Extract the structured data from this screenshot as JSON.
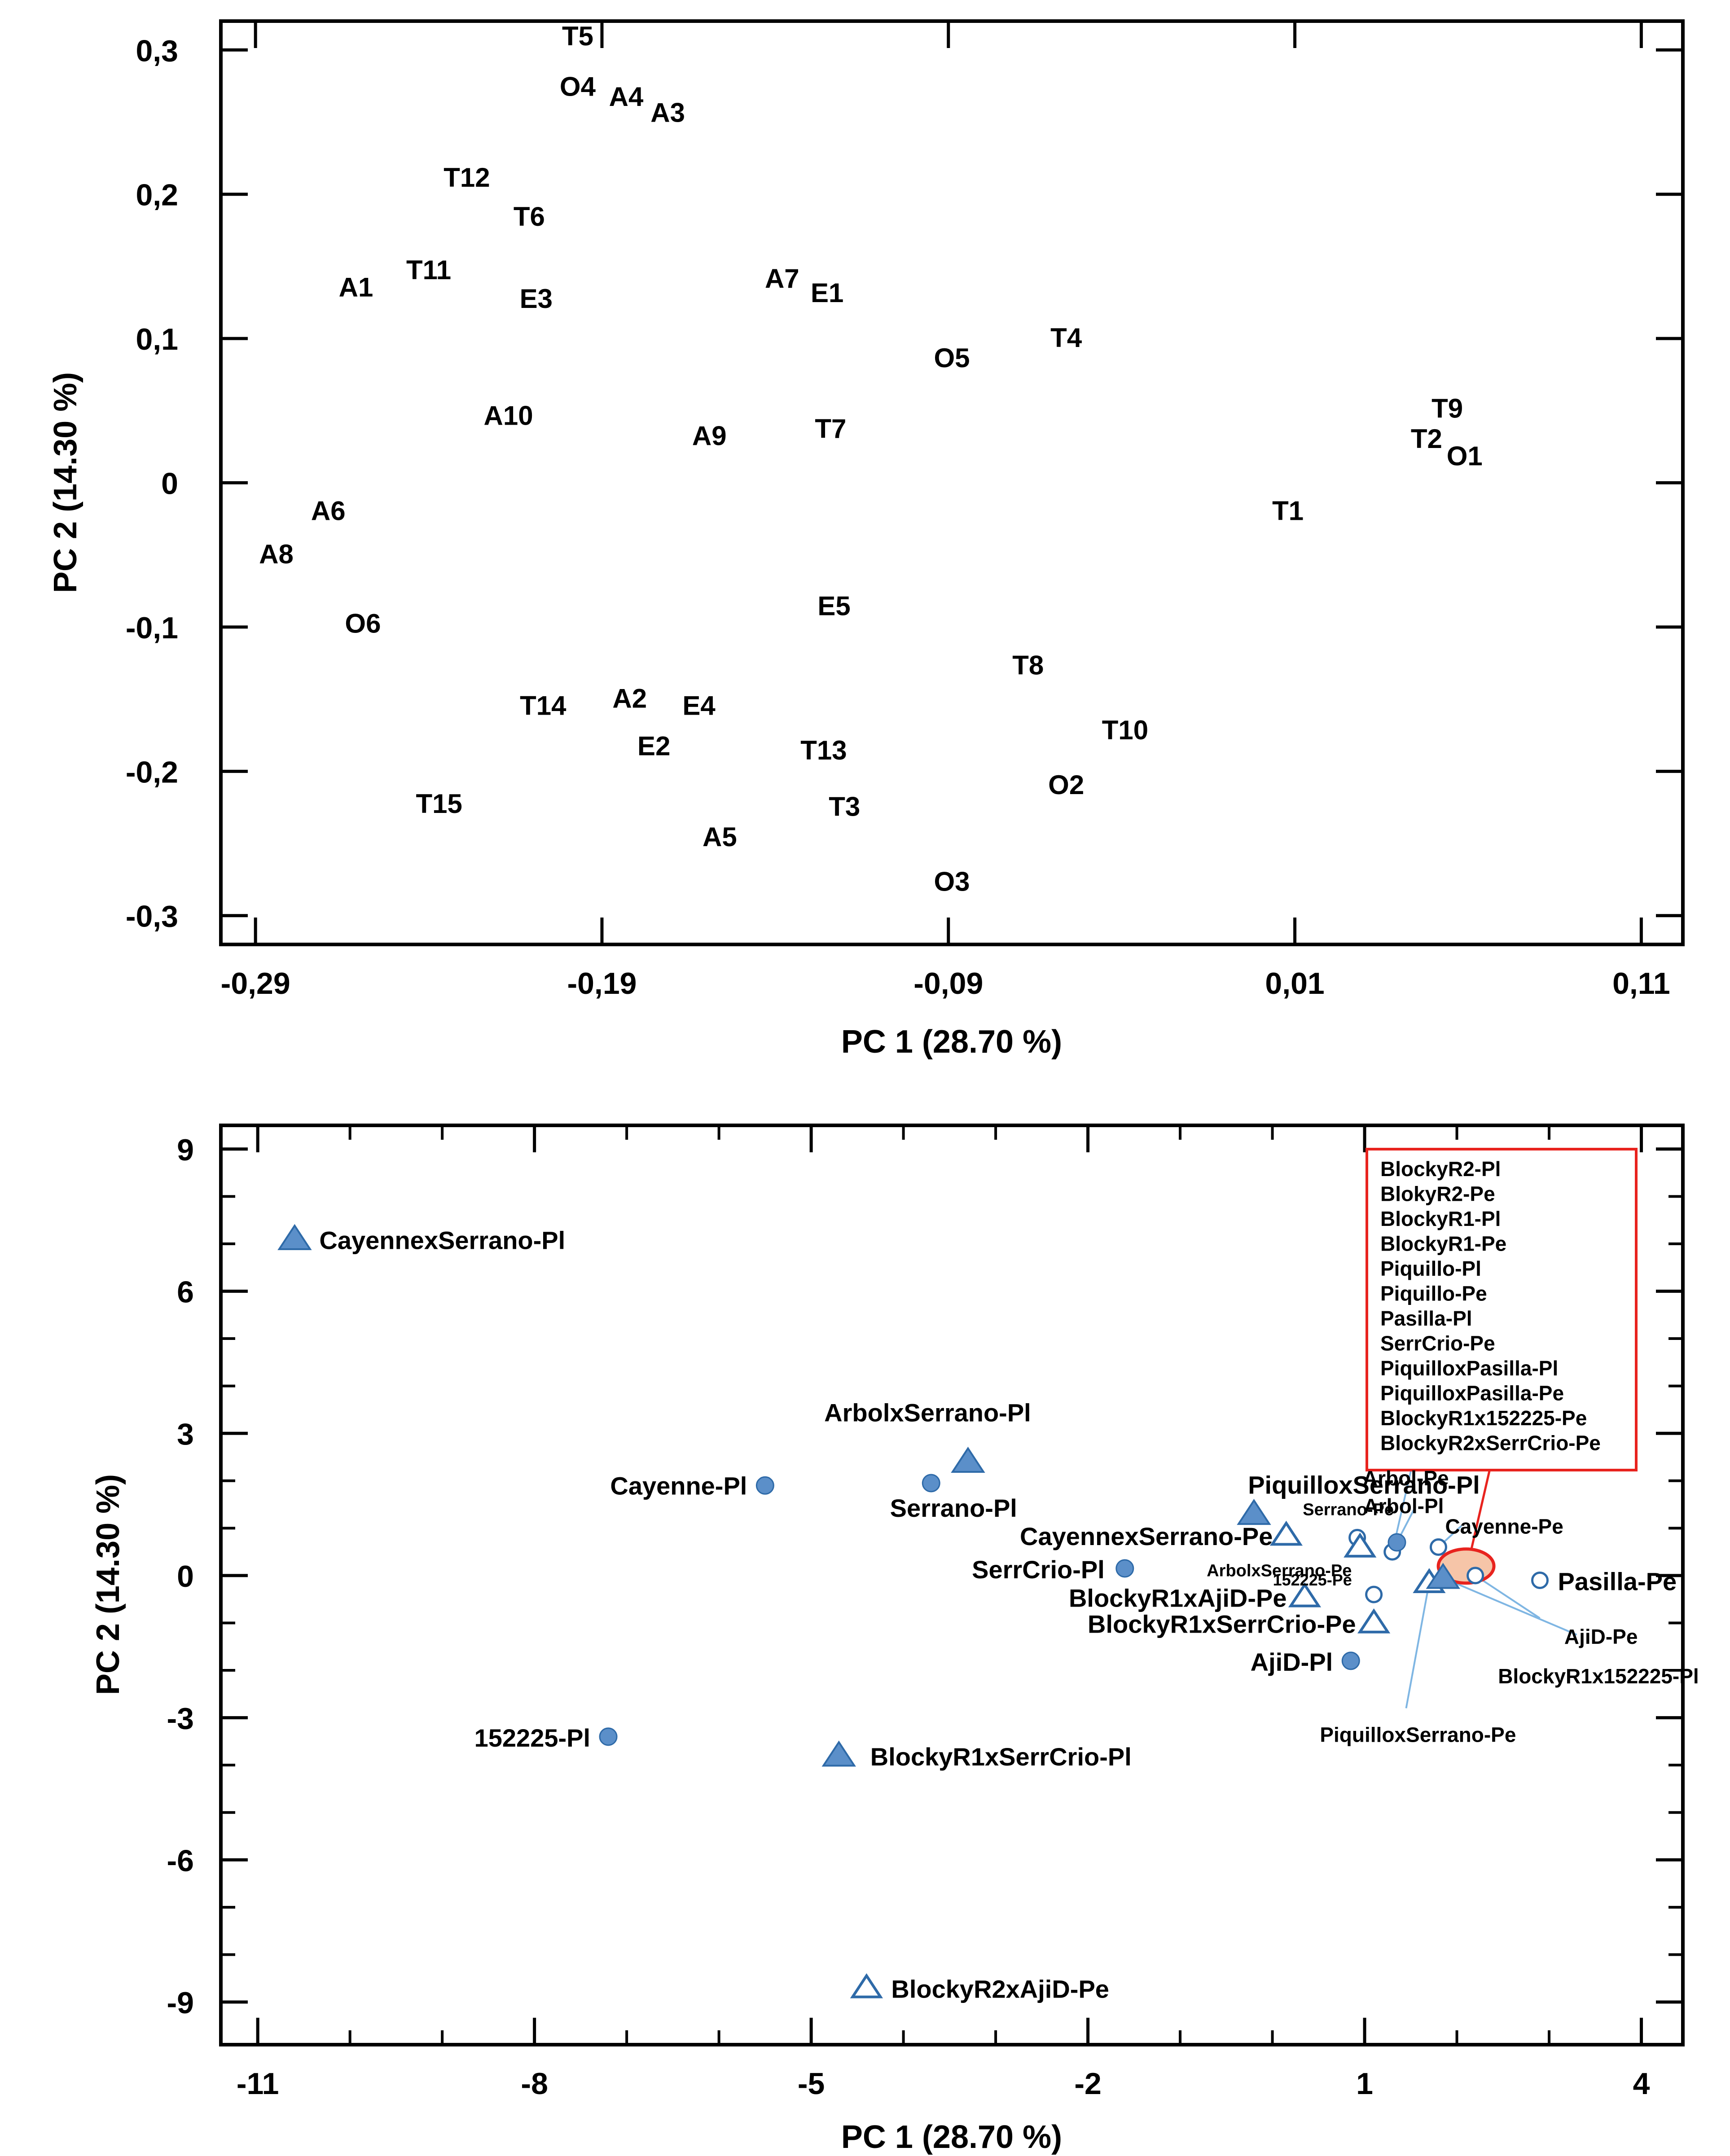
{
  "chart_data": [
    {
      "type": "scatter",
      "title": "",
      "xlabel": "PC 1 (28.70 %)",
      "ylabel": "PC 2 (14.30 %)",
      "xlim": [
        -0.3,
        0.122
      ],
      "ylim": [
        -0.32,
        0.32
      ],
      "x_ticks": [
        -0.29,
        -0.19,
        -0.09,
        0.01,
        0.11
      ],
      "x_tick_labels": [
        "-0,29",
        "-0,19",
        "-0,09",
        "0,01",
        "0,11"
      ],
      "y_ticks": [
        -0.3,
        -0.2,
        -0.1,
        0,
        0.1,
        0.2,
        0.3
      ],
      "y_tick_labels": [
        "-0,3",
        "-0,2",
        "-0,1",
        "0",
        "0,1",
        "0,2",
        "0,3"
      ],
      "grid": false,
      "points": [
        {
          "label": "T5",
          "x": -0.197,
          "y": 0.31
        },
        {
          "label": "O4",
          "x": -0.197,
          "y": 0.275
        },
        {
          "label": "A4",
          "x": -0.183,
          "y": 0.268
        },
        {
          "label": "A3",
          "x": -0.171,
          "y": 0.257
        },
        {
          "label": "T12",
          "x": -0.229,
          "y": 0.212
        },
        {
          "label": "T6",
          "x": -0.211,
          "y": 0.185
        },
        {
          "label": "A1",
          "x": -0.261,
          "y": 0.136
        },
        {
          "label": "T11",
          "x": -0.24,
          "y": 0.148
        },
        {
          "label": "E3",
          "x": -0.209,
          "y": 0.128
        },
        {
          "label": "A7",
          "x": -0.138,
          "y": 0.142
        },
        {
          "label": "E1",
          "x": -0.125,
          "y": 0.132
        },
        {
          "label": "T4",
          "x": -0.056,
          "y": 0.101
        },
        {
          "label": "O5",
          "x": -0.089,
          "y": 0.087
        },
        {
          "label": "T9",
          "x": 0.054,
          "y": 0.052
        },
        {
          "label": "A10",
          "x": -0.217,
          "y": 0.047
        },
        {
          "label": "A9",
          "x": -0.159,
          "y": 0.033
        },
        {
          "label": "T7",
          "x": -0.124,
          "y": 0.038
        },
        {
          "label": "T2",
          "x": 0.048,
          "y": 0.031
        },
        {
          "label": "O1",
          "x": 0.059,
          "y": 0.019
        },
        {
          "label": "A6",
          "x": -0.269,
          "y": -0.019
        },
        {
          "label": "T1",
          "x": 0.008,
          "y": -0.019
        },
        {
          "label": "A8",
          "x": -0.284,
          "y": -0.049
        },
        {
          "label": "E5",
          "x": -0.123,
          "y": -0.085
        },
        {
          "label": "O6",
          "x": -0.259,
          "y": -0.097
        },
        {
          "label": "T8",
          "x": -0.067,
          "y": -0.126
        },
        {
          "label": "A2",
          "x": -0.182,
          "y": -0.149
        },
        {
          "label": "T14",
          "x": -0.207,
          "y": -0.154
        },
        {
          "label": "E4",
          "x": -0.162,
          "y": -0.154
        },
        {
          "label": "T10",
          "x": -0.039,
          "y": -0.171
        },
        {
          "label": "E2",
          "x": -0.175,
          "y": -0.182
        },
        {
          "label": "T13",
          "x": -0.126,
          "y": -0.185
        },
        {
          "label": "O2",
          "x": -0.056,
          "y": -0.209
        },
        {
          "label": "T15",
          "x": -0.237,
          "y": -0.222
        },
        {
          "label": "T3",
          "x": -0.12,
          "y": -0.224
        },
        {
          "label": "A5",
          "x": -0.156,
          "y": -0.245
        },
        {
          "label": "O3",
          "x": -0.089,
          "y": -0.276
        }
      ]
    },
    {
      "type": "scatter",
      "title": "",
      "xlabel": "PC 1 (28.70 %)",
      "ylabel": "PC 2 (14.30 %)",
      "xlim": [
        -11.4,
        4.45
      ],
      "ylim": [
        -9.9,
        9.5
      ],
      "x_ticks": [
        -11,
        -8,
        -5,
        -2,
        1,
        4
      ],
      "x_tick_labels": [
        "-11",
        "-8",
        "-5",
        "-2",
        "1",
        "4"
      ],
      "y_ticks": [
        -9,
        -6,
        -3,
        0,
        3,
        6,
        9
      ],
      "y_tick_labels": [
        "-9",
        "-6",
        "-3",
        "0",
        "3",
        "6",
        "9"
      ],
      "grid": false,
      "colors": {
        "marker_fill": "#5b8fc9",
        "marker_edge": "#2e6aa8",
        "callout": "#e8231e",
        "callout_fill": "#f6c5a8",
        "leader": "#7fb6e3"
      },
      "points": [
        {
          "label": "CayennexSerrano-Pl",
          "x": -10.6,
          "y": 7.1,
          "marker": "triangle-filled"
        },
        {
          "label": "ArbolxSerrano-Pl",
          "x": -3.3,
          "y": 2.4,
          "marker": "triangle-filled"
        },
        {
          "label": "Cayenne-Pl",
          "x": -5.5,
          "y": 1.9,
          "marker": "circle-filled"
        },
        {
          "label": "Serrano-Pl",
          "x": -3.7,
          "y": 1.95,
          "marker": "circle-filled"
        },
        {
          "label": "PiquilloxSerrano-Pl",
          "x": -0.2,
          "y": 1.3,
          "marker": "triangle-filled"
        },
        {
          "label": "CayennexSerrano-Pe",
          "x": 0.15,
          "y": 0.85,
          "marker": "triangle-open"
        },
        {
          "label": "SerrCrio-Pl",
          "x": -1.6,
          "y": 0.15,
          "marker": "circle-filled"
        },
        {
          "label": "BlockyR1xAjiD-Pe",
          "x": 0.35,
          "y": -0.45,
          "marker": "triangle-open"
        },
        {
          "label": "BlockyR1xSerrCrio-Pe",
          "x": 1.1,
          "y": -1.0,
          "marker": "triangle-open"
        },
        {
          "label": "AjiD-Pl",
          "x": 0.85,
          "y": -1.8,
          "marker": "circle-filled"
        },
        {
          "label": "152225-Pl",
          "x": -7.2,
          "y": -3.4,
          "marker": "circle-filled"
        },
        {
          "label": "BlockyR1xSerrCrio-Pl",
          "x": -4.7,
          "y": -3.8,
          "marker": "triangle-filled"
        },
        {
          "label": "BlockyR2xAjiD-Pe",
          "x": -4.4,
          "y": -8.7,
          "marker": "triangle-open"
        },
        {
          "label": "Pasilla-Pe",
          "x": 2.9,
          "y": -0.1,
          "marker": "circle-open"
        },
        {
          "label": "Serrano-Pe",
          "x": 0.92,
          "y": 0.8,
          "marker": "circle-open"
        },
        {
          "label": "ArbolxSerrano-Pe",
          "x": 0.95,
          "y": 0.6,
          "marker": "triangle-open"
        },
        {
          "label": "Arbol-Pe",
          "x": 1.3,
          "y": 0.5,
          "marker": "circle-open"
        },
        {
          "label": "Arbol-Pl",
          "x": 1.35,
          "y": 0.7,
          "marker": "circle-filled"
        },
        {
          "label": "Cayenne-Pe",
          "x": 1.8,
          "y": 0.6,
          "marker": "circle-open"
        },
        {
          "label": "152225-Pe",
          "x": 1.1,
          "y": -0.4,
          "marker": "circle-open"
        },
        {
          "label": "PiquilloxSerrano-Pe",
          "x": 1.7,
          "y": -0.15,
          "marker": "triangle-open"
        },
        {
          "label": "AjiD-Pe",
          "x": 2.2,
          "y": 0.0,
          "marker": "circle-open"
        },
        {
          "label": "BlockyR1x152225-Pl",
          "x": 1.85,
          "y": -0.05,
          "marker": "triangle-filled"
        }
      ],
      "callout_group": {
        "x": 2.1,
        "y": 0.2,
        "labels": [
          "BlockyR2-Pl",
          "BlokyR2-Pe",
          "BlockyR1-Pl",
          "BlockyR1-Pe",
          "Piquillo-Pl",
          "Piquillo-Pe",
          "Pasilla-Pl",
          "SerrCrio-Pe",
          "PiquilloxPasilla-Pl",
          "PiquilloxPasilla-Pe",
          "BlockyR1x152225-Pe",
          "BlockyR2xSerrCrio-Pe"
        ]
      }
    }
  ]
}
